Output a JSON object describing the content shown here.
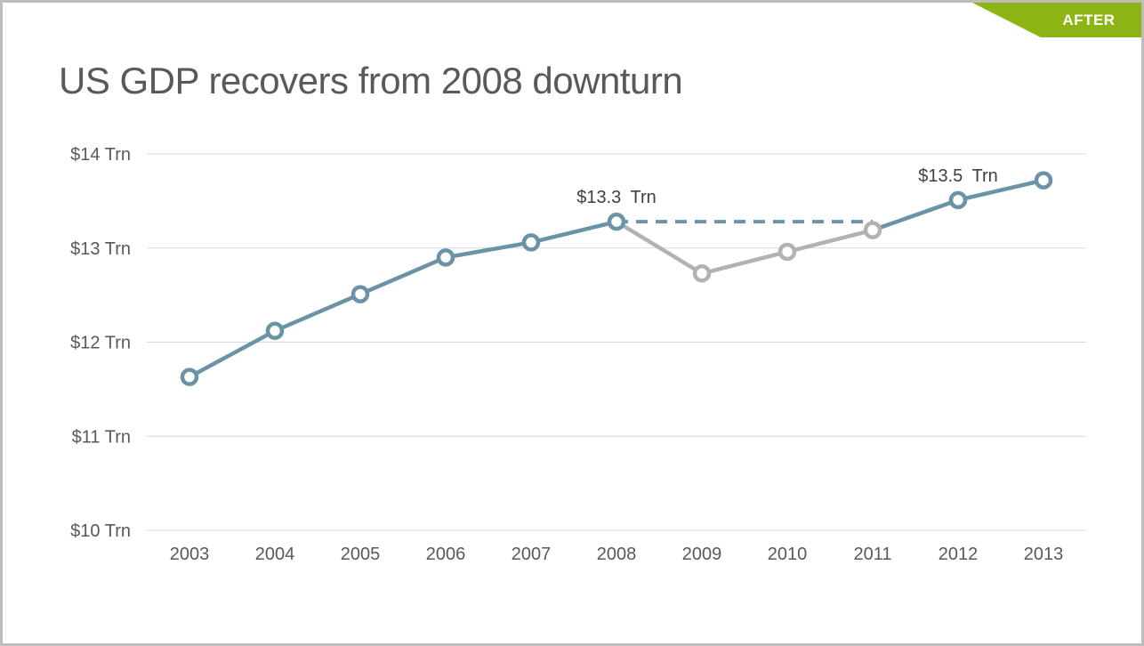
{
  "slide": {
    "badge": "AFTER",
    "title": "US GDP recovers from 2008 downturn"
  },
  "colors": {
    "accent_blue": "#6a93a6",
    "muted_gray": "#b2b2b2",
    "grid": "#d9d9d9",
    "axis_text": "#595959",
    "annotation_text": "#3f3f3f",
    "badge_green": "#8cb414",
    "border_gray": "#bdbdbd",
    "marker_fill": "#ffffff"
  },
  "chart_data": {
    "type": "line",
    "title": "US GDP recovers from 2008 downturn",
    "unit": "$ Trn",
    "x": [
      2003,
      2004,
      2005,
      2006,
      2007,
      2008,
      2009,
      2010,
      2011,
      2012,
      2013
    ],
    "values": [
      11.63,
      12.12,
      12.51,
      12.9,
      13.06,
      13.28,
      12.73,
      12.96,
      13.19,
      13.51,
      13.72
    ],
    "ylim": [
      10,
      14
    ],
    "yticks": [
      10,
      11,
      12,
      13,
      14
    ],
    "ytick_labels": [
      "$10 Trn",
      "$11 Trn",
      "$12 Trn",
      "$13 Trn",
      "$14 Trn"
    ],
    "grid": true,
    "legend": false,
    "segments": [
      {
        "name": "expansion",
        "from_year": 2003,
        "to_year": 2008,
        "color": "blue",
        "style": "solid"
      },
      {
        "name": "downturn",
        "from_year": 2008,
        "to_year": 2011,
        "color": "gray",
        "style": "solid"
      },
      {
        "name": "recovery",
        "from_year": 2011,
        "to_year": 2013,
        "color": "blue",
        "style": "solid"
      },
      {
        "name": "pre-crisis-level-reference",
        "from_year": 2008,
        "to_year": 2011,
        "color": "blue",
        "style": "dashed",
        "flat_at_value": 13.28
      }
    ],
    "marker_color_by_year": {
      "2009": "gray",
      "2010": "gray",
      "2011": "gray"
    },
    "annotations": [
      {
        "year": 2008,
        "value": 13.28,
        "text": "$13.3 Trn"
      },
      {
        "year": 2012,
        "value": 13.51,
        "text": "$13.5 Trn"
      }
    ]
  }
}
